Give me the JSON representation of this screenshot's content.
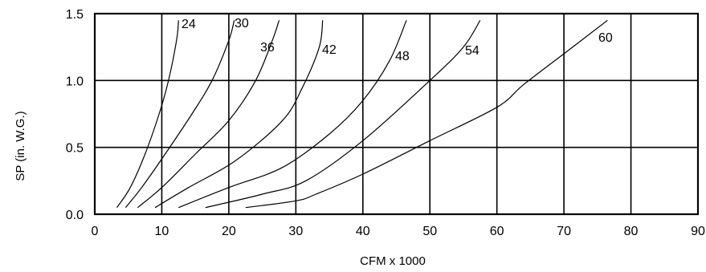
{
  "chart_data": {
    "type": "line",
    "title": "",
    "xlabel": "CFM x 1000",
    "ylabel": "SP (in. W.G.)",
    "xlim": [
      0,
      90
    ],
    "ylim": [
      0,
      1.5
    ],
    "x_ticks": [
      "0",
      "10",
      "20",
      "30",
      "40",
      "50",
      "60",
      "70",
      "80",
      "90"
    ],
    "y_ticks": [
      "0.0",
      "0.5",
      "1.0",
      "1.5"
    ],
    "grid": true,
    "series": [
      {
        "name": "24",
        "points": [
          [
            3.3,
            0.05
          ],
          [
            5.3,
            0.2
          ],
          [
            7.5,
            0.45
          ],
          [
            9.6,
            0.75
          ],
          [
            11.0,
            1.0
          ],
          [
            12.2,
            1.3
          ],
          [
            12.5,
            1.45
          ]
        ]
      },
      {
        "name": "30",
        "points": [
          [
            4.6,
            0.05
          ],
          [
            7.0,
            0.2
          ],
          [
            10.5,
            0.45
          ],
          [
            14.5,
            0.75
          ],
          [
            17.5,
            1.0
          ],
          [
            20.0,
            1.3
          ],
          [
            20.8,
            1.45
          ]
        ]
      },
      {
        "name": "36",
        "points": [
          [
            6.4,
            0.05
          ],
          [
            10.0,
            0.2
          ],
          [
            15.0,
            0.45
          ],
          [
            20.0,
            0.7
          ],
          [
            24.0,
            1.0
          ],
          [
            26.5,
            1.3
          ],
          [
            27.5,
            1.45
          ]
        ]
      },
      {
        "name": "42",
        "points": [
          [
            9.0,
            0.05
          ],
          [
            14.0,
            0.2
          ],
          [
            21.0,
            0.4
          ],
          [
            28.0,
            0.7
          ],
          [
            31.0,
            0.95
          ],
          [
            33.5,
            1.25
          ],
          [
            34.0,
            1.45
          ]
        ]
      },
      {
        "name": "48",
        "points": [
          [
            12.5,
            0.05
          ],
          [
            20.0,
            0.2
          ],
          [
            28.0,
            0.35
          ],
          [
            35.0,
            0.6
          ],
          [
            40.0,
            0.85
          ],
          [
            44.0,
            1.15
          ],
          [
            46.5,
            1.45
          ]
        ]
      },
      {
        "name": "54",
        "points": [
          [
            16.5,
            0.05
          ],
          [
            25.0,
            0.15
          ],
          [
            31.5,
            0.25
          ],
          [
            40.0,
            0.55
          ],
          [
            50.0,
            1.0
          ],
          [
            55.0,
            1.25
          ],
          [
            57.5,
            1.45
          ]
        ]
      },
      {
        "name": "60",
        "points": [
          [
            22.5,
            0.05
          ],
          [
            30.0,
            0.1
          ],
          [
            33.0,
            0.15
          ],
          [
            40.0,
            0.3
          ],
          [
            50.0,
            0.55
          ],
          [
            60.0,
            0.8
          ],
          [
            64.0,
            0.97
          ],
          [
            70.0,
            1.2
          ],
          [
            76.5,
            1.45
          ]
        ]
      }
    ]
  }
}
